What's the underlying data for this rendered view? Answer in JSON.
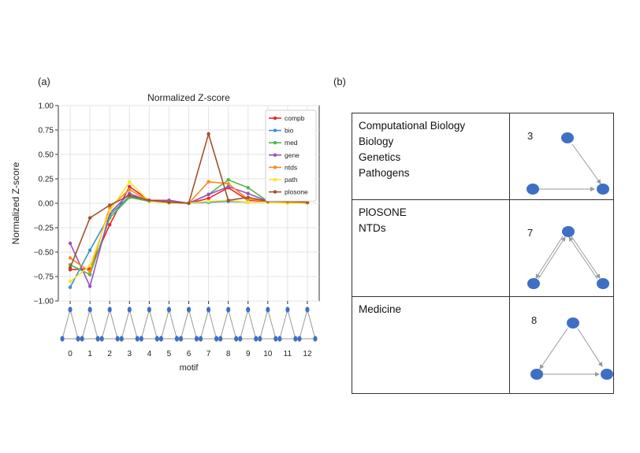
{
  "panels": {
    "a_label": "(a)",
    "b_label": "(b)"
  },
  "chart_data": {
    "type": "line",
    "title": "Normalized Z-score",
    "xlabel": "motif",
    "ylabel": "Normalized Z-score",
    "x": [
      0,
      1,
      2,
      3,
      4,
      5,
      6,
      7,
      8,
      9,
      10,
      11,
      12
    ],
    "ylim": [
      -1.0,
      1.0
    ],
    "yticks": [
      "1.00",
      "0.75",
      "0.50",
      "0.25",
      "0.00",
      "−0.25",
      "−0.50",
      "−0.75",
      "−1.00"
    ],
    "ytick_values": [
      1.0,
      0.75,
      0.5,
      0.25,
      0.0,
      -0.25,
      -0.5,
      -0.75,
      -1.0
    ],
    "grid": true,
    "legend_position": "top-right",
    "series": [
      {
        "name": "compb",
        "color": "#e8262a",
        "values": [
          -0.68,
          -0.67,
          -0.22,
          0.17,
          0.03,
          0.03,
          0.0,
          0.05,
          0.16,
          0.03,
          0.02,
          0.02,
          0.01
        ]
      },
      {
        "name": "bio",
        "color": "#3b8fd4",
        "values": [
          -0.86,
          -0.48,
          -0.12,
          0.07,
          0.02,
          0.02,
          0.0,
          0.01,
          0.02,
          0.01,
          0.01,
          0.01,
          0.0
        ]
      },
      {
        "name": "med",
        "color": "#4fb648",
        "values": [
          -0.63,
          -0.73,
          -0.15,
          0.06,
          0.02,
          0.02,
          0.0,
          0.09,
          0.24,
          0.16,
          0.02,
          0.02,
          0.01
        ]
      },
      {
        "name": "gene",
        "color": "#9c4fbe",
        "values": [
          -0.41,
          -0.85,
          -0.1,
          0.1,
          0.02,
          0.03,
          0.0,
          0.09,
          0.17,
          0.1,
          0.02,
          0.02,
          0.01
        ]
      },
      {
        "name": "ntds",
        "color": "#f68a1f",
        "values": [
          -0.56,
          -0.7,
          -0.04,
          0.14,
          0.02,
          0.01,
          0.0,
          0.22,
          0.2,
          0.04,
          0.02,
          0.01,
          0.01
        ]
      },
      {
        "name": "path",
        "color": "#f5e62f",
        "values": [
          -0.8,
          -0.64,
          -0.08,
          0.22,
          0.02,
          0.0,
          0.0,
          0.02,
          0.03,
          0.01,
          0.01,
          0.0,
          0.0
        ]
      },
      {
        "name": "plosone",
        "color": "#a0522d",
        "values": [
          -0.66,
          -0.15,
          -0.02,
          0.08,
          0.03,
          0.01,
          0.0,
          0.71,
          0.03,
          0.06,
          0.02,
          0.02,
          0.01
        ]
      }
    ]
  },
  "motif_table": {
    "rows": [
      {
        "journals": [
          "Computational Biology",
          "Biology",
          "Genetics",
          "Pathogens"
        ],
        "motif_number": "3"
      },
      {
        "journals": [
          "PlOSONE",
          "NTDs"
        ],
        "motif_number": "7"
      },
      {
        "journals": [
          "Medicine"
        ],
        "motif_number": "8"
      }
    ]
  },
  "colors": {
    "node": "#3f6fc4",
    "edge": "#999999"
  }
}
